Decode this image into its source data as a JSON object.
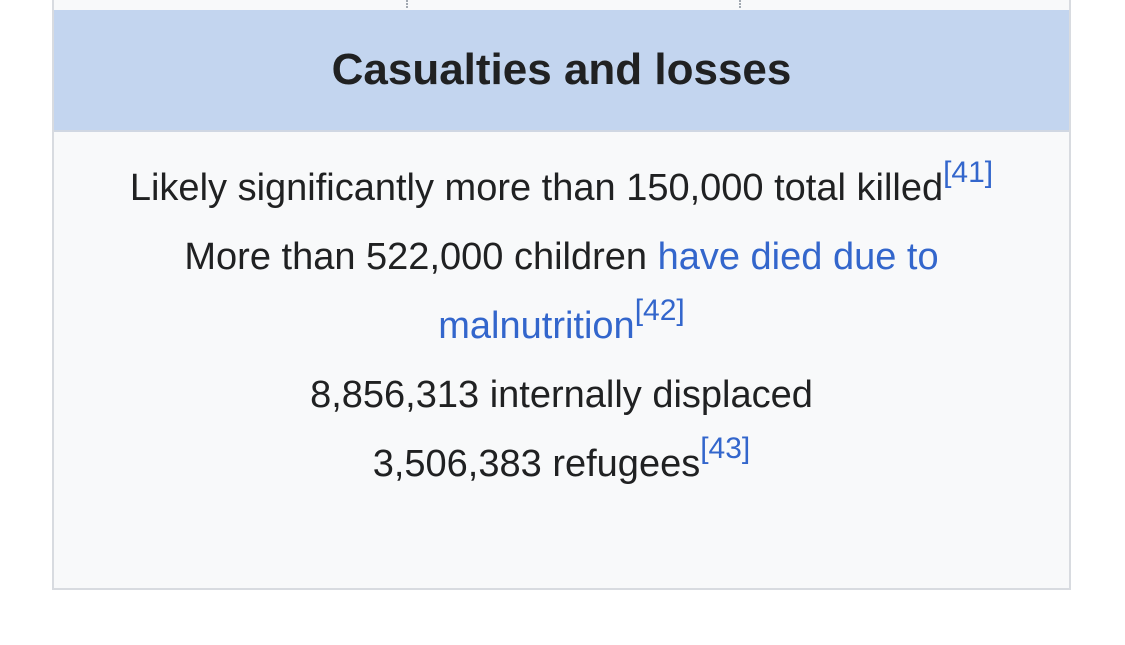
{
  "infobox": {
    "section_title": "Casualties and losses",
    "lines": [
      {
        "text": "Likely significantly more than 150,000 total killed",
        "ref": "[41]"
      },
      {
        "text": "More than 522,000 children ",
        "link_text": "have died due to malnutrition",
        "ref": "[42]"
      },
      {
        "text": "8,856,313 internally displaced"
      },
      {
        "text": "3,506,383 refugees",
        "ref": "[43]"
      }
    ]
  },
  "colors": {
    "header_bg": "#c3d5ef",
    "body_bg": "#f8f9fa",
    "link": "#3366cc",
    "text": "#202122"
  }
}
